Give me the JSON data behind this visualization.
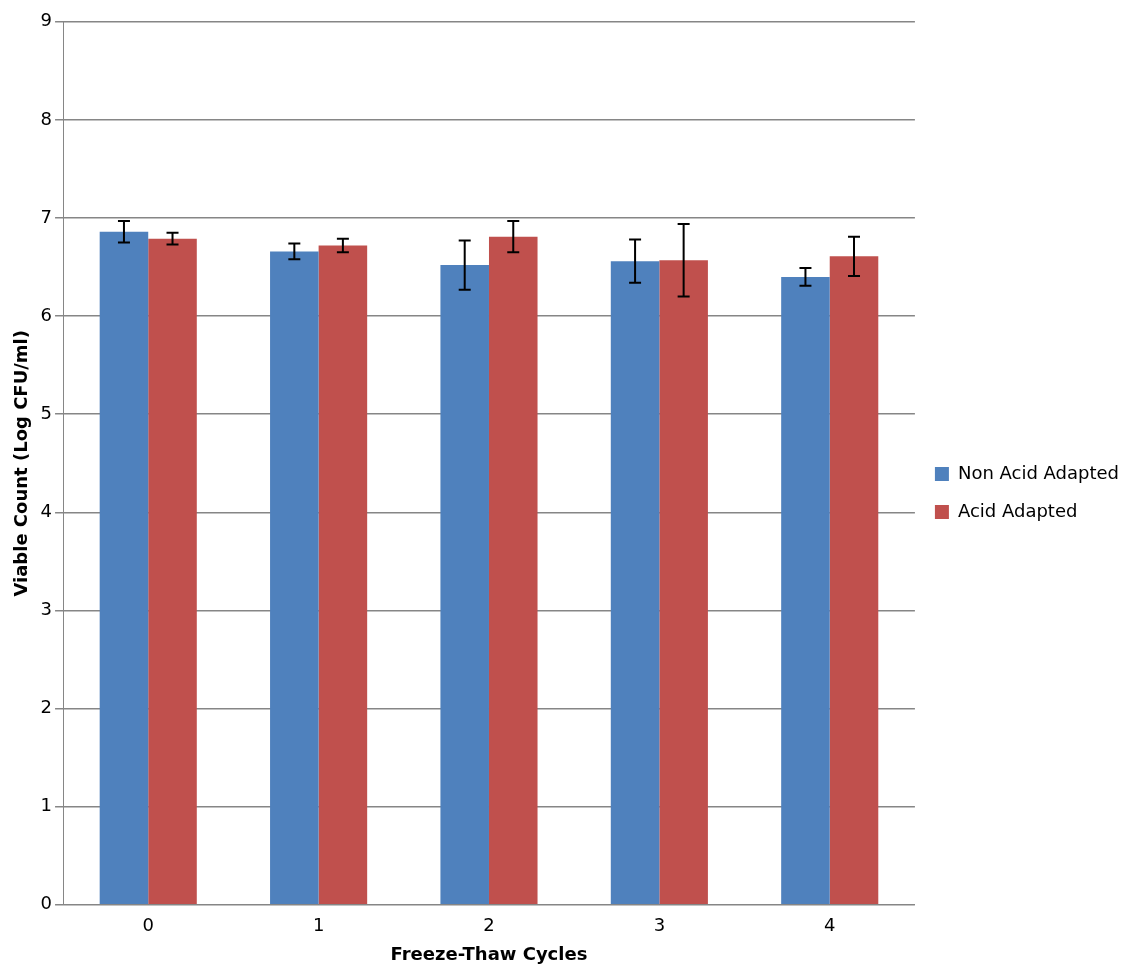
{
  "chart_data": {
    "type": "bar",
    "xlabel": "Freeze-Thaw Cycles",
    "ylabel": "Viable Count (Log CFU/ml)",
    "categories": [
      "0",
      "1",
      "2",
      "3",
      "4"
    ],
    "series": [
      {
        "name": "Non Acid Adapted",
        "color": "#4f81bd",
        "values": [
          6.86,
          6.66,
          6.52,
          6.56,
          6.4
        ],
        "errors": [
          0.11,
          0.08,
          0.25,
          0.22,
          0.09
        ]
      },
      {
        "name": "Acid Adapted",
        "color": "#c0504d",
        "values": [
          6.79,
          6.72,
          6.81,
          6.57,
          6.61
        ],
        "errors": [
          0.06,
          0.07,
          0.16,
          0.37,
          0.2
        ]
      }
    ],
    "ylim": [
      0,
      9
    ],
    "yticks": [
      0,
      1,
      2,
      3,
      4,
      5,
      6,
      7,
      8,
      9
    ],
    "grid": "y",
    "legend": "right"
  }
}
